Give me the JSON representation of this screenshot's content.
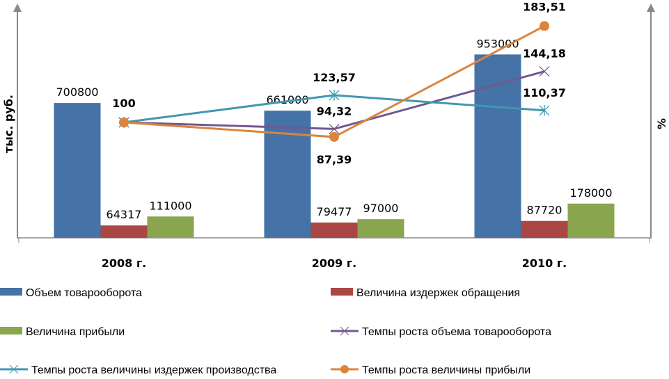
{
  "chart_data": {
    "type": "bar+line",
    "categories": [
      "2008 г.",
      "2009 г.",
      "2010 г."
    ],
    "left_axis": {
      "label": "тыс. руб.",
      "ylim": [
        0,
        1200000
      ]
    },
    "right_axis": {
      "label": "%",
      "ylim": [
        0,
        200
      ]
    },
    "bar_series": [
      {
        "name": "Объем товарооборота",
        "values": [
          700800,
          661000,
          953000
        ],
        "labels": [
          "700800",
          "661000",
          "953000"
        ],
        "color": "#4572A7"
      },
      {
        "name": "Величина издержек обращения",
        "values": [
          64317,
          79477,
          87720
        ],
        "labels": [
          "64317",
          "79477",
          "87720"
        ],
        "color": "#AA4643"
      },
      {
        "name": "Величина прибыли",
        "values": [
          111000,
          97000,
          178000
        ],
        "labels": [
          "111000",
          "97000",
          "178000"
        ],
        "color": "#89A54E"
      }
    ],
    "line_series": [
      {
        "name": "Темпы роста объема товарооборота",
        "values": [
          100,
          94.32,
          144.18
        ],
        "labels": [
          "",
          "94,32",
          "144,18"
        ],
        "color": "#71588F",
        "marker": "x-star"
      },
      {
        "name": "Темпы роста величины издержек производства",
        "values": [
          100,
          123.57,
          110.37
        ],
        "labels": [
          "",
          "123,57",
          "110,37"
        ],
        "color": "#4198AF",
        "marker": "star"
      },
      {
        "name": "Темпы роста величины прибыли",
        "values": [
          100,
          87.39,
          183.51
        ],
        "labels": [
          "100",
          "87,39",
          "183,51"
        ],
        "color": "#DB843D",
        "marker": "circle"
      }
    ],
    "legend_position": "bottom",
    "grid": false
  }
}
